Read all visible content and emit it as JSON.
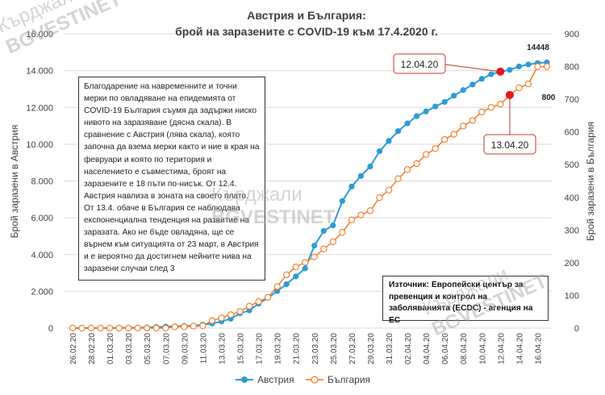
{
  "chart_data": {
    "type": "line",
    "title_line1": "Австрия и България:",
    "title_line2": "брой на заразените с COVID-19 към 17.4.2020 г.",
    "ylabel_left": "Брой заразени в Австрия",
    "ylabel_right": "Брой заразени в България",
    "left_ticks": [
      "0",
      "2.000",
      "4.000",
      "6.000",
      "8.000",
      "10.000",
      "12.000",
      "14.000",
      "16.000"
    ],
    "right_ticks": [
      "0",
      "100",
      "200",
      "300",
      "400",
      "500",
      "600",
      "700",
      "800",
      "900"
    ],
    "ylim_left": [
      0,
      16000
    ],
    "ylim_right": [
      0,
      900
    ],
    "grid": true,
    "x": [
      "26.02.20",
      "27.02.20",
      "28.02.20",
      "29.02.20",
      "01.03.20",
      "02.03.20",
      "03.03.20",
      "04.03.20",
      "05.03.20",
      "06.03.20",
      "07.03.20",
      "08.03.20",
      "09.03.20",
      "10.03.20",
      "11.03.20",
      "12.03.20",
      "13.03.20",
      "14.03.20",
      "15.03.20",
      "16.03.20",
      "17.03.20",
      "18.03.20",
      "19.03.20",
      "20.03.20",
      "21.03.20",
      "22.03.20",
      "23.03.20",
      "24.03.20",
      "25.03.20",
      "26.03.20",
      "27.03.20",
      "28.03.20",
      "29.03.20",
      "30.03.20",
      "31.03.20",
      "01.04.20",
      "02.04.20",
      "03.04.20",
      "04.04.20",
      "05.04.20",
      "06.04.20",
      "07.04.20",
      "08.04.20",
      "09.04.20",
      "10.04.20",
      "11.04.20",
      "12.04.20",
      "13.04.20",
      "14.04.20",
      "15.04.20",
      "16.04.20",
      "17.04.20"
    ],
    "xtick_labels": [
      "26.02.20",
      "28.02.20",
      "01.03.20",
      "03.03.20",
      "05.03.20",
      "07.03.20",
      "09.03.20",
      "11.03.20",
      "13.03.20",
      "15.03.20",
      "17.03.20",
      "19.03.20",
      "21.03.20",
      "23.03.20",
      "25.03.20",
      "27.03.20",
      "29.03.20",
      "31.03.20",
      "02.04.20",
      "04.04.20",
      "06.04.20",
      "08.04.20",
      "10.04.20",
      "12.04.20",
      "14.04.20",
      "16.04.20"
    ],
    "series": [
      {
        "name": "Австрия",
        "axis": "left",
        "color": "#2E9BD6",
        "values": [
          2,
          2,
          3,
          4,
          9,
          10,
          18,
          24,
          37,
          55,
          79,
          99,
          112,
          131,
          182,
          246,
          361,
          504,
          800,
          959,
          1332,
          1646,
          2013,
          2388,
          2814,
          3244,
          4486,
          5283,
          5588,
          6909,
          7697,
          8271,
          8788,
          9618,
          10180,
          10711,
          11129,
          11524,
          11781,
          12051,
          12297,
          12639,
          12942,
          13244,
          13555,
          13806,
          13945,
          14041,
          14226,
          14336,
          14412,
          14448
        ]
      },
      {
        "name": "България",
        "axis": "right",
        "color": "#F07C2A",
        "values": [
          0,
          0,
          0,
          0,
          0,
          0,
          0,
          0,
          0,
          0,
          0,
          4,
          4,
          6,
          7,
          23,
          31,
          41,
          51,
          67,
          81,
          94,
          127,
          163,
          187,
          201,
          218,
          242,
          264,
          293,
          331,
          346,
          359,
          399,
          422,
          457,
          485,
          503,
          531,
          549,
          577,
          593,
          618,
          635,
          661,
          675,
          685,
          713,
          735,
          747,
          800,
          800
        ]
      }
    ],
    "annotations": {
      "peak_value": "14448",
      "bg_end_value": "800",
      "marker_austria": "12.04.20",
      "marker_bulgaria": "13.04.20"
    },
    "legend": {
      "position": "bottom",
      "entries": [
        "Австрия",
        "България"
      ]
    }
  },
  "note_text": "Благодарение на навременните и точни мерки по овладяване на епидемията от COVID-19 България съумя да задържи ниско нивото на заразяване (дясна скала). В сравнение с Австрия (лява скала), която започна да взема мерки както и ние в края на февруари и която по територия и населението е съвместима, броят на заразените е 18 пъти по-нисък. От 12.4. Австрия навлиза в зоната на своето плато. От 13.4. обаче в България се наблюдава експоненциална тенденция на развитие на заразата. Ако не бъде овладяна, ще се върнем към ситуацията от 23 март, в Австрия и е вероятно да достигнем нейните нива на заразени случаи след 3",
  "source_text": "Източник: Европейски център за превенция и контрол на заболяванията (ECDC) - агенция на ЕС",
  "watermark": {
    "line1": "Кърджали",
    "line2": "BGVESTINET"
  }
}
